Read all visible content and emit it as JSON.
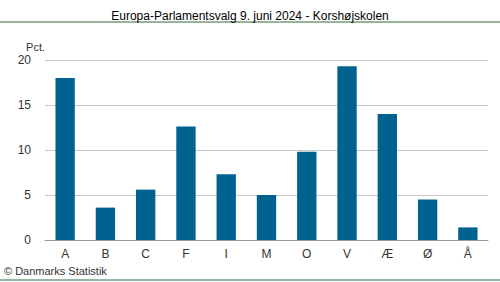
{
  "chart_data": {
    "type": "bar",
    "title": "Europa-Parlamentsvalg 9. juni 2024 - Korshøjskolen",
    "ylabel": "Pct.",
    "annotation": "© Danmarks Statistik",
    "categories": [
      "A",
      "B",
      "C",
      "F",
      "I",
      "M",
      "O",
      "V",
      "Æ",
      "Ø",
      "Å"
    ],
    "values": [
      18.0,
      3.6,
      5.6,
      12.6,
      7.3,
      5.0,
      9.8,
      19.3,
      14.0,
      4.5,
      1.4
    ],
    "color": "#00628f",
    "ylim": [
      0,
      20
    ],
    "yticks": [
      0,
      5,
      10,
      15,
      20
    ],
    "grid": true
  }
}
